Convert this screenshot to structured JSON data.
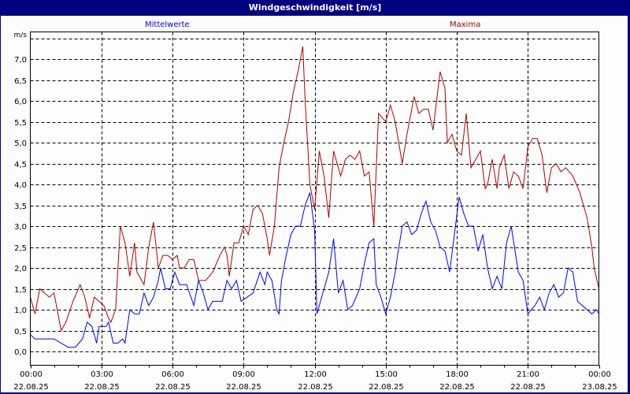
{
  "window": {
    "title": "Windgeschwindigkeit [m/s]"
  },
  "legend": {
    "series_avg": "Mittelwerte",
    "series_max": "Maxima"
  },
  "colors": {
    "avg": "#0000ff",
    "max": "#b00000",
    "titlebar": "#000080",
    "grid": "#000000"
  },
  "axes": {
    "y_unit": "m/s",
    "y_ticks": [
      "0,0",
      "0,5",
      "1,0",
      "1,5",
      "2,0",
      "2,5",
      "3,0",
      "3,5",
      "4,0",
      "4,5",
      "5,0",
      "5,5",
      "6,0",
      "6,5",
      "7,0"
    ],
    "x_ticks": [
      {
        "time": "00:00",
        "date": "22.08.25"
      },
      {
        "time": "03:00",
        "date": "22.08.25"
      },
      {
        "time": "06:00",
        "date": "22.08.25"
      },
      {
        "time": "09:00",
        "date": "22.08.25"
      },
      {
        "time": "12:00",
        "date": "22.08.25"
      },
      {
        "time": "15:00",
        "date": "22.08.25"
      },
      {
        "time": "18:00",
        "date": "22.08.25"
      },
      {
        "time": "21:00",
        "date": "22.08.25"
      },
      {
        "time": "00:00",
        "date": "23.08.25"
      }
    ]
  },
  "chart_data": {
    "type": "line",
    "title": "Windgeschwindigkeit [m/s]",
    "xlabel": "",
    "ylabel": "m/s",
    "ylim": [
      -0.25,
      7.5
    ],
    "xlim_hours": [
      0,
      24
    ],
    "grid": true,
    "legend_position": "top",
    "series": [
      {
        "name": "Mittelwerte",
        "color": "#0000ff",
        "points_hours": [
          [
            0,
            0.4
          ],
          [
            0.2,
            0.3
          ],
          [
            0.5,
            0.3
          ],
          [
            1.0,
            0.3
          ],
          [
            1.3,
            0.2
          ],
          [
            1.6,
            0.1
          ],
          [
            1.9,
            0.1
          ],
          [
            2.2,
            0.3
          ],
          [
            2.4,
            0.7
          ],
          [
            2.6,
            0.6
          ],
          [
            2.8,
            0.2
          ],
          [
            2.9,
            0.6
          ],
          [
            3.2,
            0.6
          ],
          [
            3.3,
            0.7
          ],
          [
            3.5,
            0.2
          ],
          [
            3.7,
            0.2
          ],
          [
            3.9,
            0.3
          ],
          [
            4.0,
            0.2
          ],
          [
            4.2,
            1.0
          ],
          [
            4.4,
            0.9
          ],
          [
            4.6,
            0.9
          ],
          [
            4.8,
            1.4
          ],
          [
            5.0,
            1.1
          ],
          [
            5.2,
            1.3
          ],
          [
            5.4,
            1.7
          ],
          [
            5.5,
            2.0
          ],
          [
            5.7,
            1.5
          ],
          [
            5.9,
            1.5
          ],
          [
            6.1,
            1.9
          ],
          [
            6.3,
            1.6
          ],
          [
            6.6,
            1.6
          ],
          [
            6.9,
            1.1
          ],
          [
            7.1,
            1.7
          ],
          [
            7.3,
            1.4
          ],
          [
            7.5,
            1.0
          ],
          [
            7.7,
            1.2
          ],
          [
            8.1,
            1.2
          ],
          [
            8.3,
            1.7
          ],
          [
            8.5,
            1.5
          ],
          [
            8.7,
            1.7
          ],
          [
            8.9,
            1.2
          ],
          [
            9.4,
            1.4
          ],
          [
            9.7,
            1.9
          ],
          [
            9.9,
            1.6
          ],
          [
            10.0,
            1.9
          ],
          [
            10.2,
            1.7
          ],
          [
            10.4,
            1.0
          ],
          [
            10.5,
            0.9
          ],
          [
            10.6,
            1.7
          ],
          [
            10.8,
            2.3
          ],
          [
            11.0,
            2.8
          ],
          [
            11.2,
            3.0
          ],
          [
            11.4,
            3.0
          ],
          [
            11.6,
            3.5
          ],
          [
            11.8,
            3.8
          ],
          [
            12.0,
            2.9
          ],
          [
            12.1,
            0.9
          ],
          [
            12.4,
            1.5
          ],
          [
            12.6,
            1.9
          ],
          [
            12.8,
            2.7
          ],
          [
            13.0,
            1.4
          ],
          [
            13.2,
            1.7
          ],
          [
            13.4,
            1.0
          ],
          [
            13.6,
            1.1
          ],
          [
            13.9,
            1.5
          ],
          [
            14.1,
            2.1
          ],
          [
            14.3,
            2.6
          ],
          [
            14.5,
            2.7
          ],
          [
            14.6,
            1.6
          ],
          [
            14.8,
            1.3
          ],
          [
            15.0,
            0.9
          ],
          [
            15.2,
            1.3
          ],
          [
            15.4,
            1.9
          ],
          [
            15.5,
            2.3
          ],
          [
            15.7,
            3.0
          ],
          [
            15.9,
            3.1
          ],
          [
            16.1,
            2.8
          ],
          [
            16.3,
            2.9
          ],
          [
            16.5,
            3.3
          ],
          [
            16.7,
            3.6
          ],
          [
            16.9,
            3.1
          ],
          [
            17.1,
            2.9
          ],
          [
            17.3,
            2.5
          ],
          [
            17.5,
            2.4
          ],
          [
            17.7,
            1.9
          ],
          [
            17.9,
            2.8
          ],
          [
            18.1,
            3.7
          ],
          [
            18.3,
            3.3
          ],
          [
            18.5,
            3.0
          ],
          [
            18.7,
            3.0
          ],
          [
            18.9,
            2.4
          ],
          [
            19.1,
            2.8
          ],
          [
            19.3,
            2.0
          ],
          [
            19.5,
            1.5
          ],
          [
            19.7,
            1.8
          ],
          [
            19.9,
            1.5
          ],
          [
            20.1,
            2.6
          ],
          [
            20.3,
            3.0
          ],
          [
            20.6,
            1.9
          ],
          [
            20.8,
            1.7
          ],
          [
            21.0,
            0.9
          ],
          [
            21.3,
            1.1
          ],
          [
            21.5,
            1.3
          ],
          [
            21.7,
            1.0
          ],
          [
            21.9,
            1.4
          ],
          [
            22.1,
            1.6
          ],
          [
            22.3,
            1.3
          ],
          [
            22.5,
            1.4
          ],
          [
            22.7,
            2.0
          ],
          [
            22.9,
            1.9
          ],
          [
            23.1,
            1.2
          ],
          [
            23.3,
            1.1
          ],
          [
            23.5,
            1.0
          ],
          [
            23.7,
            0.9
          ],
          [
            23.9,
            1.0
          ],
          [
            24.0,
            0.9
          ]
        ]
      },
      {
        "name": "Maxima",
        "color": "#b00000",
        "points_hours": [
          [
            0,
            1.3
          ],
          [
            0.2,
            0.9
          ],
          [
            0.4,
            1.5
          ],
          [
            0.8,
            1.3
          ],
          [
            1.0,
            1.4
          ],
          [
            1.3,
            0.5
          ],
          [
            1.5,
            0.7
          ],
          [
            1.8,
            1.2
          ],
          [
            2.1,
            1.6
          ],
          [
            2.3,
            1.3
          ],
          [
            2.5,
            0.8
          ],
          [
            2.7,
            1.3
          ],
          [
            2.9,
            1.2
          ],
          [
            3.1,
            1.1
          ],
          [
            3.3,
            0.8
          ],
          [
            3.4,
            0.7
          ],
          [
            3.6,
            1.0
          ],
          [
            3.8,
            3.0
          ],
          [
            4.0,
            2.6
          ],
          [
            4.2,
            1.8
          ],
          [
            4.4,
            2.6
          ],
          [
            4.5,
            1.9
          ],
          [
            4.8,
            1.6
          ],
          [
            5.0,
            2.5
          ],
          [
            5.2,
            3.1
          ],
          [
            5.4,
            2.0
          ],
          [
            5.6,
            2.3
          ],
          [
            5.8,
            2.3
          ],
          [
            6.0,
            2.2
          ],
          [
            6.2,
            2.3
          ],
          [
            6.3,
            2.0
          ],
          [
            6.5,
            2.0
          ],
          [
            6.7,
            2.2
          ],
          [
            6.9,
            2.2
          ],
          [
            7.1,
            1.7
          ],
          [
            7.4,
            1.7
          ],
          [
            7.7,
            1.9
          ],
          [
            8.0,
            2.3
          ],
          [
            8.2,
            2.5
          ],
          [
            8.3,
            2.3
          ],
          [
            8.4,
            1.8
          ],
          [
            8.6,
            2.6
          ],
          [
            8.8,
            2.6
          ],
          [
            9.0,
            3.0
          ],
          [
            9.2,
            2.8
          ],
          [
            9.4,
            3.4
          ],
          [
            9.6,
            3.5
          ],
          [
            9.8,
            3.3
          ],
          [
            10.0,
            2.7
          ],
          [
            10.1,
            2.3
          ],
          [
            10.3,
            3.0
          ],
          [
            10.5,
            4.4
          ],
          [
            10.7,
            5.0
          ],
          [
            10.9,
            5.5
          ],
          [
            11.1,
            6.2
          ],
          [
            11.3,
            6.7
          ],
          [
            11.5,
            7.3
          ],
          [
            11.6,
            6.0
          ],
          [
            11.8,
            4.0
          ],
          [
            12.0,
            3.4
          ],
          [
            12.2,
            4.8
          ],
          [
            12.4,
            4.2
          ],
          [
            12.6,
            3.2
          ],
          [
            12.8,
            4.8
          ],
          [
            13.1,
            4.2
          ],
          [
            13.3,
            4.6
          ],
          [
            13.5,
            4.7
          ],
          [
            13.7,
            4.6
          ],
          [
            13.9,
            4.8
          ],
          [
            14.1,
            4.2
          ],
          [
            14.3,
            4.3
          ],
          [
            14.5,
            3.0
          ],
          [
            14.7,
            5.7
          ],
          [
            15.0,
            5.5
          ],
          [
            15.2,
            5.9
          ],
          [
            15.4,
            5.5
          ],
          [
            15.7,
            4.5
          ],
          [
            15.9,
            5.2
          ],
          [
            16.2,
            6.1
          ],
          [
            16.4,
            5.7
          ],
          [
            16.6,
            5.8
          ],
          [
            16.8,
            5.8
          ],
          [
            17.0,
            5.3
          ],
          [
            17.3,
            6.7
          ],
          [
            17.5,
            6.3
          ],
          [
            17.6,
            5.0
          ],
          [
            17.8,
            5.2
          ],
          [
            18.0,
            4.8
          ],
          [
            18.2,
            4.7
          ],
          [
            18.4,
            5.7
          ],
          [
            18.6,
            4.4
          ],
          [
            18.8,
            4.6
          ],
          [
            19.0,
            4.8
          ],
          [
            19.2,
            3.9
          ],
          [
            19.3,
            4.0
          ],
          [
            19.5,
            4.6
          ],
          [
            19.7,
            3.9
          ],
          [
            19.8,
            4.4
          ],
          [
            20.0,
            4.7
          ],
          [
            20.2,
            3.9
          ],
          [
            20.4,
            4.3
          ],
          [
            20.6,
            4.2
          ],
          [
            20.8,
            3.9
          ],
          [
            21.0,
            4.9
          ],
          [
            21.2,
            5.1
          ],
          [
            21.4,
            5.1
          ],
          [
            21.6,
            4.7
          ],
          [
            21.8,
            3.8
          ],
          [
            22.0,
            4.4
          ],
          [
            22.2,
            4.5
          ],
          [
            22.4,
            4.3
          ],
          [
            22.6,
            4.4
          ],
          [
            22.9,
            4.2
          ],
          [
            23.2,
            3.8
          ],
          [
            23.5,
            3.2
          ],
          [
            23.7,
            2.5
          ],
          [
            23.8,
            2.0
          ],
          [
            24.0,
            1.5
          ]
        ]
      }
    ]
  }
}
